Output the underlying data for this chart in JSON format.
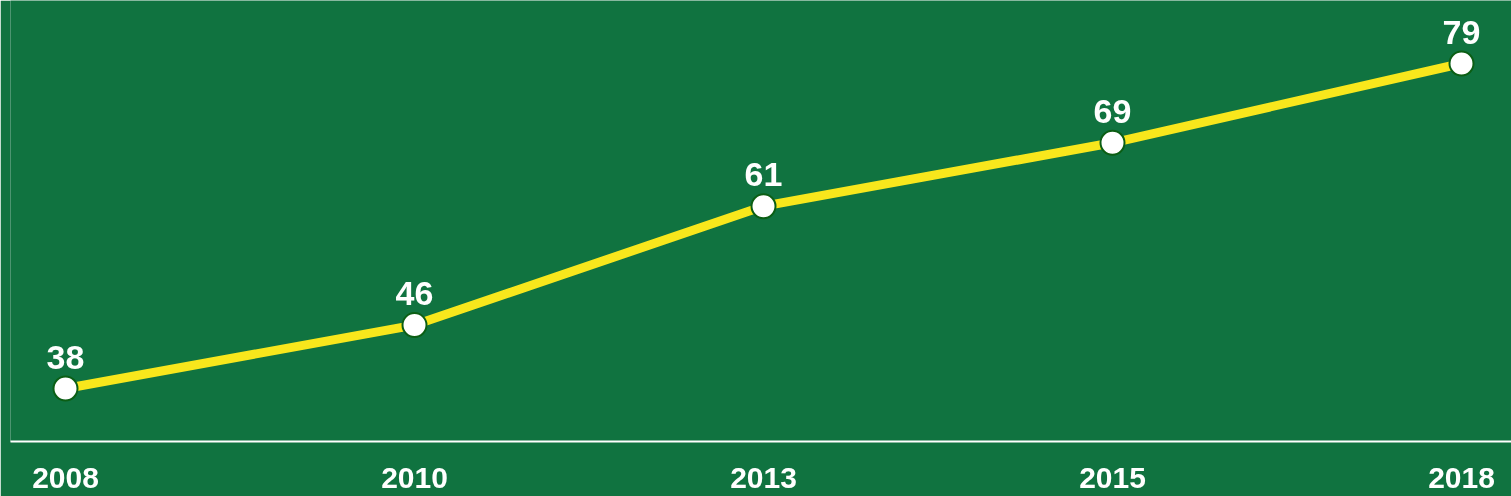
{
  "chart_data": {
    "type": "line",
    "categories": [
      "2008",
      "2010",
      "2013",
      "2015",
      "2018"
    ],
    "series": [
      {
        "color": "#f8e71c",
        "values": [
          38,
          46,
          61,
          69,
          79
        ]
      }
    ],
    "data_labels": true,
    "marker": "circle",
    "line_style": "solid",
    "grid": false
  }
}
